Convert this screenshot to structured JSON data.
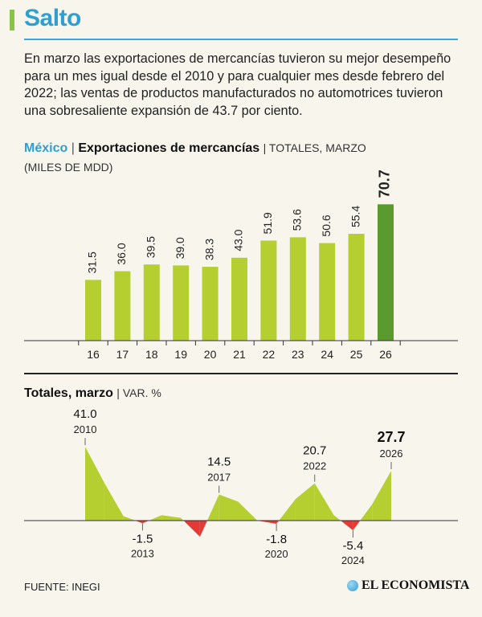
{
  "header": {
    "title": "Salto",
    "lead": "En marzo las exportaciones de mercancías tuvieron su mejor desempeño para un mes igual desde el 2010 y para cualquier mes desde febrero del 2022; las ventas de productos manufacturados no automotrices tuvieron una sobresaliente expansión de 43.7 por ciento."
  },
  "chart1": {
    "country": "México",
    "separator": "|",
    "main_title": "Exportaciones de mercancías",
    "subtitle": "| TOTALES, MARZO",
    "unit": "(MILES DE MDD)"
  },
  "chart2": {
    "main_title": "Totales, marzo",
    "subtitle": "| VAR. %"
  },
  "footer": {
    "source": "FUENTE: INEGI",
    "brand": "EL ECONOMISTA"
  },
  "colors": {
    "bar": "#b4cf2f",
    "bar_highlight": "#5a9a2e",
    "area_positive": "#b4cf2f",
    "area_negative": "#e53935",
    "title_blue": "#2e9fd3"
  },
  "chart_data": [
    {
      "type": "bar",
      "title": "Exportaciones de mercancías",
      "subtitle": "TOTALES, MARZO",
      "ylabel": "(MILES DE MDD)",
      "categories": [
        "16",
        "17",
        "18",
        "19",
        "20",
        "21",
        "22",
        "23",
        "24",
        "25",
        "26"
      ],
      "values": [
        31.5,
        36.0,
        39.5,
        39.0,
        38.3,
        43.0,
        51.9,
        53.6,
        50.6,
        55.4,
        70.7
      ],
      "value_labels": [
        "31.5",
        "36.0",
        "39.5",
        "39.0",
        "38.3",
        "43.0",
        "51.9",
        "53.6",
        "50.6",
        "55.4",
        "70.7"
      ],
      "highlight_index": 10,
      "ylim": [
        0,
        75
      ],
      "grid": false
    },
    {
      "type": "area",
      "title": "Totales, marzo",
      "subtitle": "VAR. %",
      "x": [
        2010,
        2011,
        2012,
        2013,
        2014,
        2015,
        2016,
        2017,
        2018,
        2019,
        2020,
        2021,
        2022,
        2023,
        2024,
        2025,
        2026
      ],
      "values": [
        41.0,
        21.0,
        2.5,
        -1.5,
        3.0,
        1.5,
        -9.0,
        14.5,
        10.5,
        0.0,
        -1.8,
        12.0,
        20.7,
        3.0,
        -5.4,
        9.0,
        27.7
      ],
      "ylim": [
        -12,
        45
      ],
      "annotations": [
        {
          "x": 2010,
          "value_label": "41.0",
          "year_label": "2010",
          "position": "above",
          "emphasis": false
        },
        {
          "x": 2013,
          "value_label": "-1.5",
          "year_label": "2013",
          "position": "below",
          "emphasis": false
        },
        {
          "x": 2017,
          "value_label": "14.5",
          "year_label": "2017",
          "position": "above",
          "emphasis": false
        },
        {
          "x": 2020,
          "value_label": "-1.8",
          "year_label": "2020",
          "position": "below",
          "emphasis": false
        },
        {
          "x": 2022,
          "value_label": "20.7",
          "year_label": "2022",
          "position": "above",
          "emphasis": false
        },
        {
          "x": 2024,
          "value_label": "-5.4",
          "year_label": "2024",
          "position": "below",
          "emphasis": false
        },
        {
          "x": 2026,
          "value_label": "27.7",
          "year_label": "2026",
          "position": "above",
          "emphasis": true
        }
      ]
    }
  ]
}
